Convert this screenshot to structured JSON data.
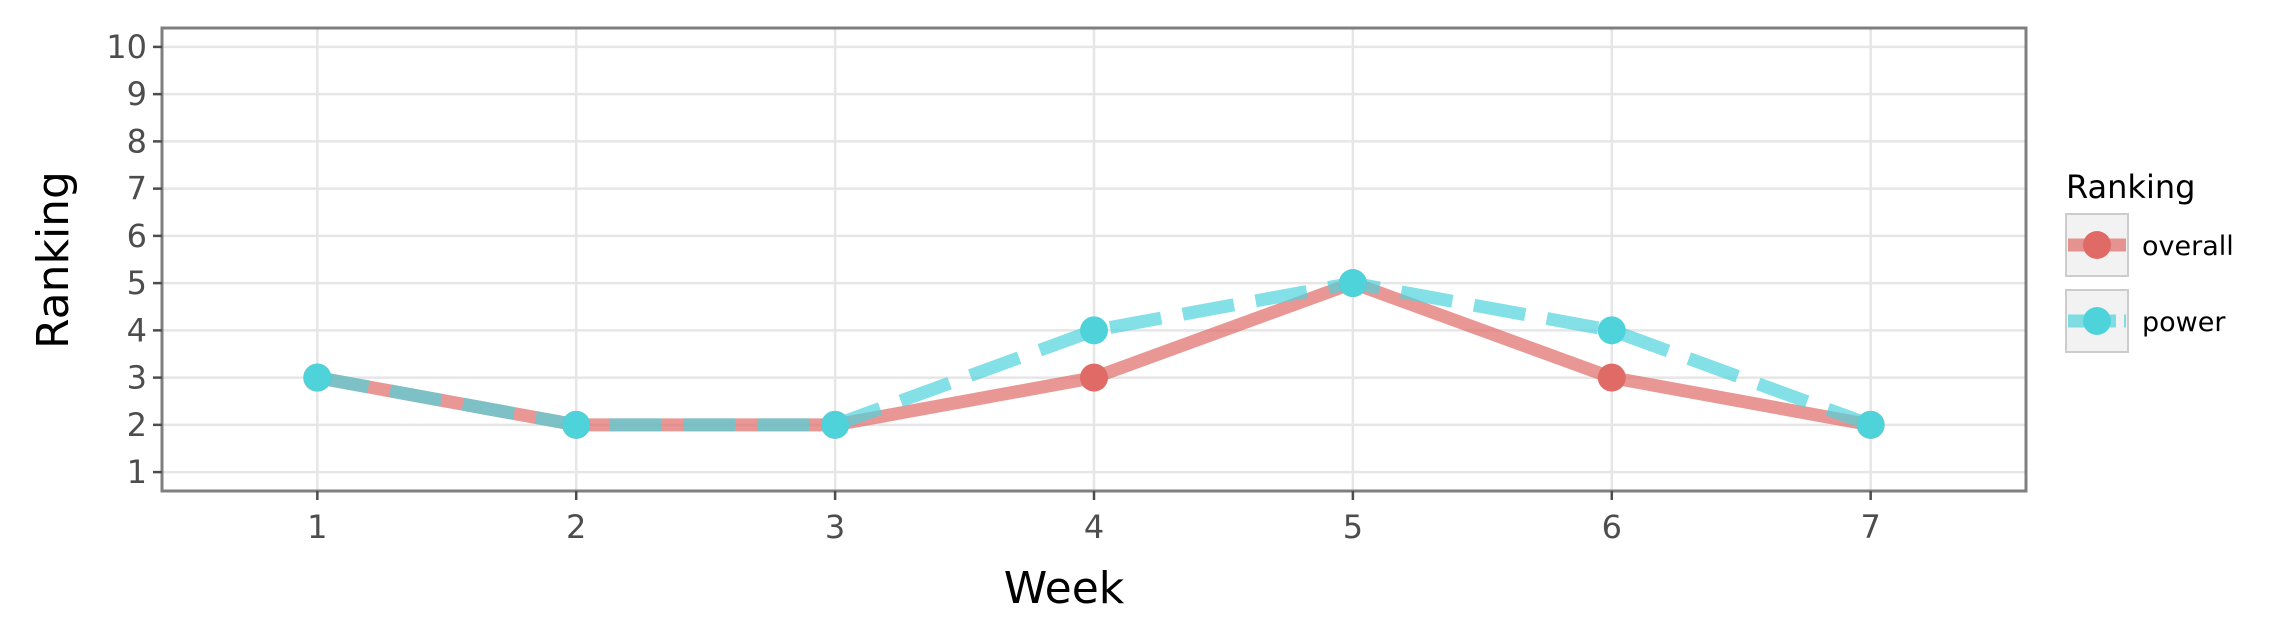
{
  "chart_data": {
    "type": "line",
    "x": [
      1,
      2,
      3,
      4,
      5,
      6,
      7
    ],
    "xlabel": "Week",
    "ylabel": "Ranking",
    "xlim": [
      0.4,
      7.6
    ],
    "ylim": [
      10.4,
      0.6
    ],
    "y_reversed": true,
    "xticks": [
      "1",
      "2",
      "3",
      "4",
      "5",
      "6",
      "7"
    ],
    "yticks": [
      "1",
      "2",
      "3",
      "4",
      "5",
      "6",
      "7",
      "8",
      "9",
      "10"
    ],
    "grid": true,
    "legend_title": "Ranking",
    "legend_position": "right",
    "series": [
      {
        "name": "overall",
        "values": [
          3,
          2,
          2,
          3,
          5,
          3,
          2
        ],
        "color": "#e06b66",
        "line_style": "solid"
      },
      {
        "name": "power",
        "values": [
          3,
          2,
          2,
          4,
          5,
          4,
          2
        ],
        "color": "#4fd3db",
        "line_style": "dashed"
      }
    ]
  }
}
